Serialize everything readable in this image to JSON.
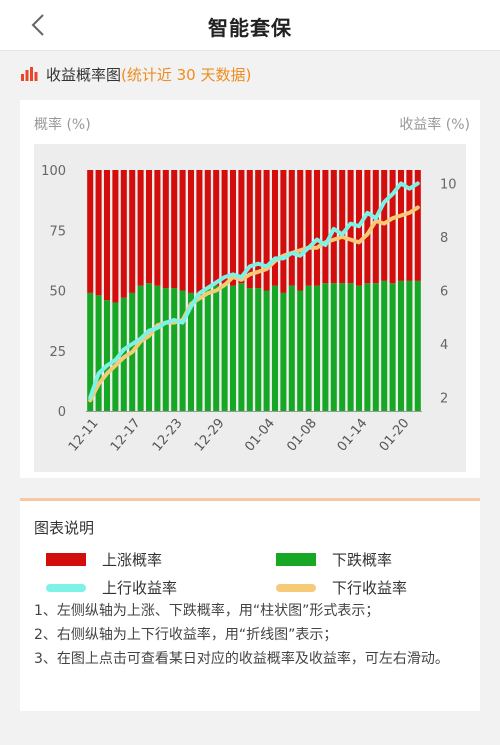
{
  "nav": {
    "title": "智能套保"
  },
  "section": {
    "title": "收益概率图",
    "note": "(统计近 30 天数据)"
  },
  "colors": {
    "up_prob": "#d30c0c",
    "down_prob": "#16a824",
    "up_yield": "#7ff2e8",
    "down_yield": "#f5cb78"
  },
  "chart_data": {
    "type": "bar",
    "left_axis_title": "概率 (%)",
    "right_axis_title": "收益率 (%)",
    "y_left_lim": [
      0,
      100
    ],
    "y_left_ticks": [
      "0",
      "25",
      "50",
      "75",
      "100"
    ],
    "y_right_lim": [
      1.5,
      10.5
    ],
    "y_right_ticks": [
      "2",
      "4",
      "6",
      "8",
      "10"
    ],
    "x_tick_labels": [
      "12-11",
      "12-17",
      "12-23",
      "12-29",
      "01-04",
      "01-08",
      "01-14",
      "01-20"
    ],
    "bar_count": 40,
    "series": [
      {
        "name": "上涨概率",
        "type": "stacked-bar",
        "values": [
          51,
          52,
          54,
          55,
          53,
          51,
          48,
          47,
          48,
          49,
          49,
          50,
          51,
          51,
          49,
          48,
          47,
          48,
          47,
          49,
          49,
          50,
          48,
          51,
          48,
          50,
          48,
          48,
          47,
          47,
          47,
          47,
          48,
          47,
          47,
          46,
          47,
          46,
          46,
          46
        ]
      },
      {
        "name": "下跌概率",
        "type": "stacked-bar",
        "values": [
          49,
          48,
          46,
          45,
          47,
          49,
          52,
          53,
          52,
          51,
          51,
          50,
          49,
          49,
          51,
          52,
          53,
          52,
          53,
          51,
          51,
          50,
          52,
          49,
          52,
          50,
          52,
          52,
          53,
          53,
          53,
          53,
          52,
          53,
          53,
          54,
          53,
          54,
          54,
          54
        ]
      },
      {
        "name": "上行收益率",
        "type": "line",
        "values": [
          2.0,
          2.9,
          3.2,
          3.4,
          3.8,
          4.0,
          4.2,
          4.5,
          4.6,
          4.8,
          4.9,
          4.8,
          5.4,
          5.9,
          6.1,
          6.3,
          6.5,
          6.6,
          6.5,
          6.9,
          7.0,
          6.9,
          7.2,
          7.2,
          7.4,
          7.3,
          7.6,
          7.9,
          7.7,
          8.3,
          8.1,
          8.5,
          8.4,
          8.9,
          8.7,
          9.3,
          9.6,
          10.0,
          9.8,
          10.0
        ]
      },
      {
        "name": "下行收益率",
        "type": "line",
        "values": [
          1.9,
          2.5,
          2.9,
          3.2,
          3.5,
          3.7,
          4.1,
          4.3,
          4.7,
          4.8,
          4.8,
          4.9,
          5.5,
          5.7,
          5.9,
          6.0,
          6.2,
          6.5,
          6.4,
          6.6,
          6.7,
          6.8,
          7.1,
          7.3,
          7.4,
          7.5,
          7.6,
          7.6,
          7.8,
          7.9,
          8.0,
          7.9,
          7.8,
          8.1,
          8.6,
          8.5,
          8.7,
          8.8,
          8.9,
          9.1
        ]
      }
    ]
  },
  "legend": {
    "title": "图表说明",
    "items": [
      {
        "label": "上涨概率",
        "kind": "box",
        "color": "#d30c0c"
      },
      {
        "label": "下跌概率",
        "kind": "box",
        "color": "#16a824"
      },
      {
        "label": "上行收益率",
        "kind": "line",
        "color": "#7ff2e8"
      },
      {
        "label": "下行收益率",
        "kind": "line",
        "color": "#f5cb78"
      }
    ],
    "notes": [
      "1、左侧纵轴为上涨、下跌概率，用“柱状图”形式表示；",
      "2、右侧纵轴为上下行收益率，用“折线图”表示；",
      "3、在图上点击可查看某日对应的收益概率及收益率，可左右滑动。"
    ]
  }
}
